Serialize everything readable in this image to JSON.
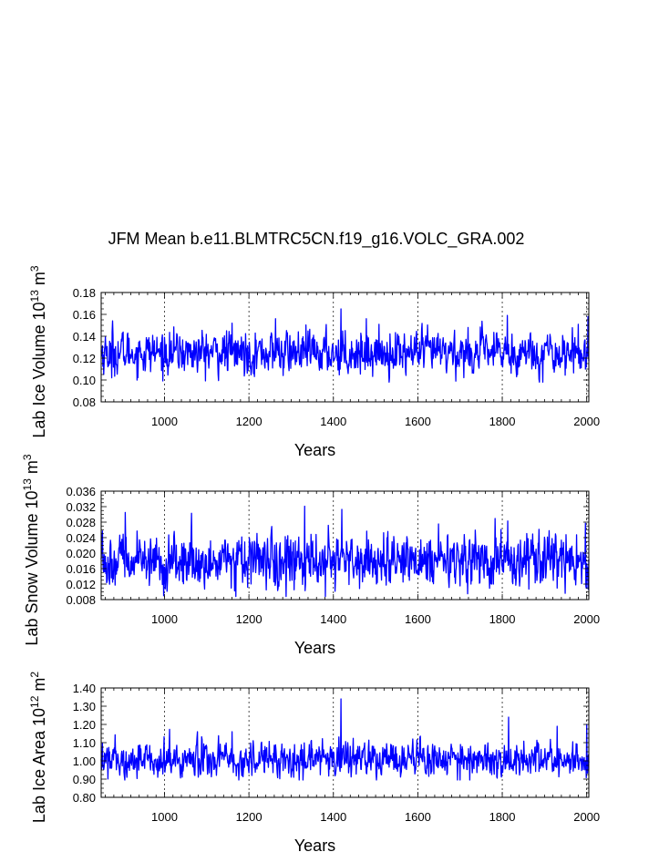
{
  "figure_title": "JFM Mean b.e11.BLMTRC5CN.f19_g16.VOLC_GRA.002",
  "colors": {
    "series": "#0000ff",
    "axis": "#000000"
  },
  "chart_data": [
    {
      "type": "line",
      "title": "JFM Mean b.e11.BLMTRC5CN.f19_g16.VOLC_GRA.002",
      "ylabel": "Lab Ice Volume 10",
      "ylabel_exp": "13",
      "ylabel_unit": "m",
      "ylabel_unit_exp": "3",
      "xlabel": "Years",
      "xlim": [
        850,
        2005
      ],
      "ylim": [
        0.08,
        0.18
      ],
      "xticks": [
        1000,
        1200,
        1400,
        1600,
        1800,
        2000
      ],
      "yticks": [
        "0.08",
        "0.10",
        "0.12",
        "0.14",
        "0.16",
        "0.18"
      ],
      "ytick_values": [
        0.08,
        0.1,
        0.12,
        0.14,
        0.16,
        0.18
      ],
      "grid": "vertical-dashed",
      "series": {
        "name": "Lab Ice Volume",
        "x_start": 850,
        "x_end": 2005,
        "mean": 0.125,
        "sd": 0.0095,
        "min": 0.098,
        "max": 0.165,
        "peaks": [
          [
            877,
            0.154
          ],
          [
            1160,
            0.152
          ],
          [
            1263,
            0.156
          ],
          [
            1418,
            0.165
          ],
          [
            1478,
            0.156
          ],
          [
            1812,
            0.159
          ],
          [
            2003,
            0.158
          ],
          [
            1690,
            0.099
          ],
          [
            875,
            0.102
          ]
        ]
      }
    },
    {
      "type": "line",
      "ylabel": "Lab Snow Volume 10",
      "ylabel_exp": "13",
      "ylabel_unit": "m",
      "ylabel_unit_exp": "3",
      "xlabel": "Years",
      "xlim": [
        850,
        2005
      ],
      "ylim": [
        0.008,
        0.036
      ],
      "xticks": [
        1000,
        1200,
        1400,
        1600,
        1800,
        2000
      ],
      "yticks": [
        "0.008",
        "0.012",
        "0.016",
        "0.020",
        "0.024",
        "0.028",
        "0.032",
        "0.036"
      ],
      "ytick_values": [
        0.008,
        0.012,
        0.016,
        0.02,
        0.024,
        0.028,
        0.032,
        0.036
      ],
      "grid": "vertical-dashed",
      "series": {
        "name": "Lab Snow Volume",
        "x_start": 850,
        "x_end": 2005,
        "mean": 0.0178,
        "sd": 0.0033,
        "min": 0.0088,
        "max": 0.0321,
        "peaks": [
          [
            907,
            0.0305
          ],
          [
            1064,
            0.0303
          ],
          [
            1332,
            0.0321
          ],
          [
            1420,
            0.0313
          ],
          [
            1813,
            0.0283
          ],
          [
            1997,
            0.0277
          ],
          [
            998,
            0.009
          ],
          [
            1718,
            0.0095
          ]
        ]
      }
    },
    {
      "type": "line",
      "ylabel": "Lab Ice Area 10",
      "ylabel_exp": "12",
      "ylabel_unit": "m",
      "ylabel_unit_exp": "2",
      "xlabel": "Years",
      "xlim": [
        850,
        2005
      ],
      "ylim": [
        0.8,
        1.4
      ],
      "xticks": [
        1000,
        1200,
        1400,
        1600,
        1800,
        2000
      ],
      "yticks": [
        "0.80",
        "0.90",
        "1.00",
        "1.10",
        "1.20",
        "1.30",
        "1.40"
      ],
      "ytick_values": [
        0.8,
        0.9,
        1.0,
        1.1,
        1.2,
        1.3,
        1.4
      ],
      "grid": "vertical-dashed",
      "series": {
        "name": "Lab Ice Area",
        "x_start": 850,
        "x_end": 2005,
        "mean": 1.01,
        "sd": 0.045,
        "min": 0.895,
        "max": 1.34,
        "peaks": [
          [
            1418,
            1.34
          ],
          [
            1815,
            1.24
          ],
          [
            2000,
            1.2
          ],
          [
            1160,
            1.16
          ],
          [
            1930,
            1.19
          ],
          [
            1700,
            0.895
          ]
        ]
      }
    }
  ]
}
